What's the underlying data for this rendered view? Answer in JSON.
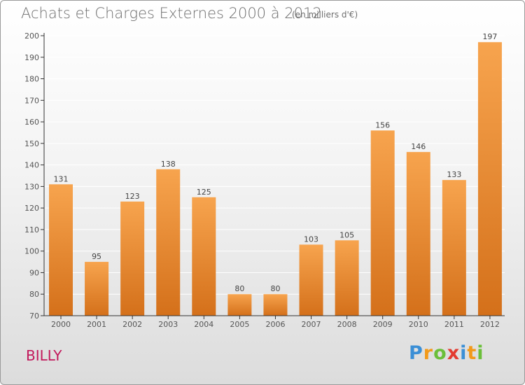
{
  "title": "Achats et Charges Externes 2000 à 2012",
  "subtitle": "(en milliers d'€)",
  "commune": "BILLY",
  "logo": {
    "text": "Proxiti",
    "letters": [
      {
        "ch": "P",
        "color": "#3b8fd6"
      },
      {
        "ch": "r",
        "color": "#f29a1a"
      },
      {
        "ch": "o",
        "color": "#6bbf3a"
      },
      {
        "ch": "x",
        "color": "#e33b2f"
      },
      {
        "ch": "i",
        "color": "#3b8fd6"
      },
      {
        "ch": "t",
        "color": "#f29a1a"
      },
      {
        "ch": "i",
        "color": "#6bbf3a"
      }
    ]
  },
  "colors": {
    "bar_top": "#f7a44e",
    "bar_bottom": "#d4701a",
    "axis": "#333333",
    "grid": "#ffffff"
  },
  "chart_data": {
    "type": "bar",
    "title": "Achats et Charges Externes 2000 à 2012",
    "subtitle": "(en milliers d'€)",
    "categories": [
      "2000",
      "2001",
      "2002",
      "2003",
      "2004",
      "2005",
      "2006",
      "2007",
      "2008",
      "2009",
      "2010",
      "2011",
      "2012"
    ],
    "values": [
      131,
      95,
      123,
      138,
      125,
      80,
      80,
      103,
      105,
      156,
      146,
      133,
      197
    ],
    "ylim": [
      70,
      200
    ],
    "yticks": [
      70,
      80,
      90,
      100,
      110,
      120,
      130,
      140,
      150,
      160,
      170,
      180,
      190,
      200
    ],
    "grid": true,
    "xlabel": "",
    "ylabel": ""
  }
}
